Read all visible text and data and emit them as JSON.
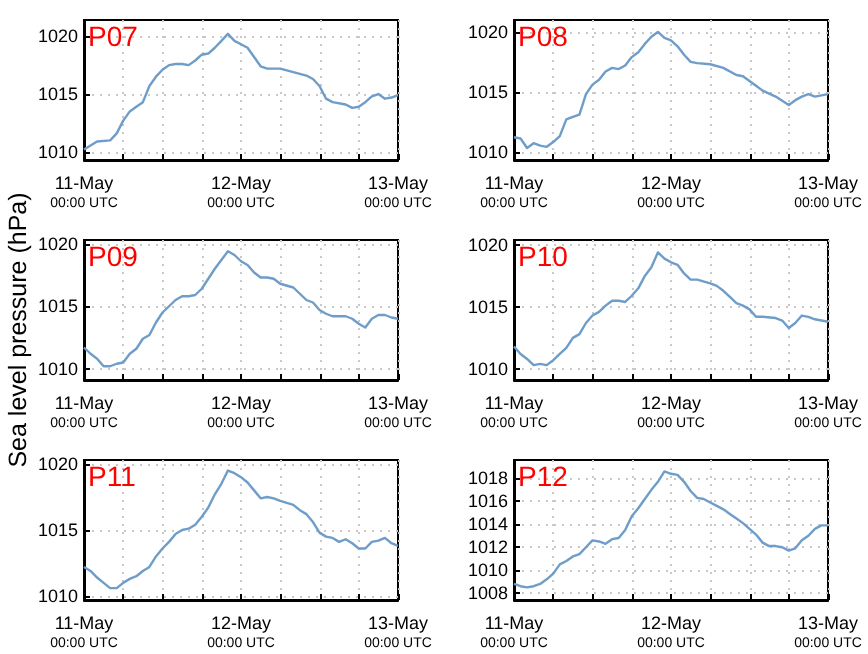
{
  "chart_data": [
    {
      "type": "line",
      "title": "P07",
      "x": [
        "--05-11T00:00",
        "--05-11T02:00",
        "--05-11T04:00",
        "--05-11T05:00",
        "--05-11T06:00",
        "--05-11T07:00",
        "--05-11T08:00",
        "--05-11T09:00",
        "--05-11T10:00",
        "--05-11T11:00",
        "--05-11T12:00",
        "--05-11T13:00",
        "--05-11T14:00",
        "--05-11T15:00",
        "--05-11T16:00",
        "--05-11T17:00",
        "--05-11T18:00",
        "--05-11T19:00",
        "--05-11T20:00",
        "--05-11T21:00",
        "--05-11T22:00",
        "--05-11T23:00",
        "--05-12T00:00",
        "--05-12T01:00",
        "--05-12T02:00",
        "--05-12T03:00",
        "--05-12T04:00",
        "--05-12T06:00",
        "--05-12T08:00",
        "--05-12T10:00",
        "--05-12T11:00",
        "--05-12T12:00",
        "--05-12T13:00",
        "--05-12T14:00",
        "--05-12T16:00",
        "--05-12T17:00",
        "--05-12T18:00",
        "--05-12T19:00",
        "--05-12T20:00",
        "--05-12T21:00",
        "--05-12T22:00",
        "--05-12T23:00",
        "--05-13T00:00"
      ],
      "series": [
        {
          "color": "#6f9dc9",
          "values": [
            1010.2,
            1010.9,
            1011.0,
            1011.6,
            1012.7,
            1013.5,
            1013.9,
            1014.3,
            1015.7,
            1016.5,
            1017.1,
            1017.5,
            1017.6,
            1017.6,
            1017.5,
            1017.9,
            1018.4,
            1018.5,
            1019.0,
            1019.6,
            1020.2,
            1019.6,
            1019.3,
            1019.0,
            1018.2,
            1017.4,
            1017.2,
            1017.2,
            1016.9,
            1016.6,
            1016.3,
            1015.7,
            1014.6,
            1014.3,
            1014.1,
            1013.8,
            1013.9,
            1014.3,
            1014.8,
            1015.0,
            1014.6,
            1014.7,
            1014.9
          ]
        }
      ],
      "xlim": [
        "--05-11T00:00",
        "--05-13T00:00"
      ],
      "xticks": [
        {
          "value": "--05-11T00:00",
          "label": "11-May\n00:00 UTC"
        },
        {
          "value": "--05-11T06:00",
          "label": null
        },
        {
          "value": "--05-11T12:00",
          "label": null
        },
        {
          "value": "--05-11T18:00",
          "label": null
        },
        {
          "value": "--05-12T00:00",
          "label": "12-May\n00:00 UTC"
        },
        {
          "value": "--05-12T06:00",
          "label": null
        },
        {
          "value": "--05-12T12:00",
          "label": null
        },
        {
          "value": "--05-12T18:00",
          "label": null
        },
        {
          "value": "--05-13T00:00",
          "label": "13-May\n00:00 UTC"
        }
      ],
      "ylim": [
        1009.3,
        1021.4
      ],
      "yticks": [
        1010,
        1015,
        1020
      ],
      "grid": true
    },
    {
      "type": "line",
      "title": "P08",
      "x": [
        "--05-11T00:00",
        "--05-11T01:00",
        "--05-11T02:00",
        "--05-11T03:00",
        "--05-11T04:00",
        "--05-11T05:00",
        "--05-11T06:00",
        "--05-11T07:00",
        "--05-11T08:00",
        "--05-11T09:00",
        "--05-11T10:00",
        "--05-11T11:00",
        "--05-11T12:00",
        "--05-11T13:00",
        "--05-11T14:00",
        "--05-11T15:00",
        "--05-11T16:00",
        "--05-11T17:00",
        "--05-11T18:00",
        "--05-11T19:00",
        "--05-11T20:00",
        "--05-11T21:00",
        "--05-11T22:00",
        "--05-11T23:00",
        "--05-12T00:00",
        "--05-12T01:00",
        "--05-12T02:00",
        "--05-12T03:00",
        "--05-12T04:00",
        "--05-12T06:00",
        "--05-12T08:00",
        "--05-12T10:00",
        "--05-12T11:00",
        "--05-12T12:00",
        "--05-12T13:00",
        "--05-12T14:00",
        "--05-12T16:00",
        "--05-12T18:00",
        "--05-12T19:00",
        "--05-12T20:00",
        "--05-12T21:00",
        "--05-12T22:00",
        "--05-12T23:00",
        "--05-13T00:00"
      ],
      "series": [
        {
          "color": "#6f9dc9",
          "values": [
            1011.2,
            1011.1,
            1010.3,
            1010.7,
            1010.5,
            1010.4,
            1010.8,
            1011.3,
            1012.7,
            1012.9,
            1013.1,
            1014.8,
            1015.6,
            1016.0,
            1016.7,
            1017.0,
            1016.9,
            1017.2,
            1017.9,
            1018.3,
            1019.0,
            1019.6,
            1020.0,
            1019.5,
            1019.3,
            1018.8,
            1018.1,
            1017.5,
            1017.4,
            1017.3,
            1017.0,
            1016.4,
            1016.3,
            1015.9,
            1015.5,
            1015.1,
            1014.6,
            1013.9,
            1014.3,
            1014.6,
            1014.8,
            1014.6,
            1014.7,
            1014.8
          ]
        }
      ],
      "xlim": [
        "--05-11T00:00",
        "--05-13T00:00"
      ],
      "xticks": [
        {
          "value": "--05-11T00:00",
          "label": "11-May\n00:00 UTC"
        },
        {
          "value": "--05-11T06:00",
          "label": null
        },
        {
          "value": "--05-11T12:00",
          "label": null
        },
        {
          "value": "--05-11T18:00",
          "label": null
        },
        {
          "value": "--05-12T00:00",
          "label": "12-May\n00:00 UTC"
        },
        {
          "value": "--05-12T06:00",
          "label": null
        },
        {
          "value": "--05-12T12:00",
          "label": null
        },
        {
          "value": "--05-12T18:00",
          "label": null
        },
        {
          "value": "--05-13T00:00",
          "label": "13-May\n00:00 UTC"
        }
      ],
      "ylim": [
        1009.3,
        1021.0
      ],
      "yticks": [
        1010,
        1015,
        1020
      ],
      "grid": true
    },
    {
      "type": "line",
      "title": "P09",
      "ylabel": "Sea level pressure (hPa)",
      "x": [
        "--05-11T00:00",
        "--05-11T01:00",
        "--05-11T02:00",
        "--05-11T03:00",
        "--05-11T04:00",
        "--05-11T05:00",
        "--05-11T06:00",
        "--05-11T07:00",
        "--05-11T08:00",
        "--05-11T09:00",
        "--05-11T10:00",
        "--05-11T11:00",
        "--05-11T12:00",
        "--05-11T13:00",
        "--05-11T14:00",
        "--05-11T15:00",
        "--05-11T16:00",
        "--05-11T17:00",
        "--05-11T18:00",
        "--05-11T19:00",
        "--05-11T20:00",
        "--05-11T21:00",
        "--05-11T22:00",
        "--05-11T23:00",
        "--05-12T00:00",
        "--05-12T01:00",
        "--05-12T02:00",
        "--05-12T03:00",
        "--05-12T04:00",
        "--05-12T05:00",
        "--05-12T06:00",
        "--05-12T08:00",
        "--05-12T09:00",
        "--05-12T10:00",
        "--05-12T11:00",
        "--05-12T12:00",
        "--05-12T13:00",
        "--05-12T14:00",
        "--05-12T16:00",
        "--05-12T17:00",
        "--05-12T18:00",
        "--05-12T19:00",
        "--05-12T20:00",
        "--05-12T21:00",
        "--05-12T22:00",
        "--05-12T23:00",
        "--05-13T00:00"
      ],
      "series": [
        {
          "color": "#6f9dc9",
          "values": [
            1011.7,
            1011.2,
            1010.8,
            1010.2,
            1010.2,
            1010.4,
            1010.5,
            1011.2,
            1011.6,
            1012.4,
            1012.7,
            1013.7,
            1014.5,
            1015.0,
            1015.5,
            1015.8,
            1015.8,
            1015.9,
            1016.4,
            1017.2,
            1018.0,
            1018.7,
            1019.4,
            1019.1,
            1018.6,
            1018.3,
            1017.7,
            1017.3,
            1017.3,
            1017.2,
            1016.8,
            1016.5,
            1016.0,
            1015.5,
            1015.3,
            1014.7,
            1014.4,
            1014.2,
            1014.2,
            1014.0,
            1013.6,
            1013.3,
            1014.0,
            1014.3,
            1014.3,
            1014.1,
            1014.0
          ]
        }
      ],
      "xlim": [
        "--05-11T00:00",
        "--05-13T00:00"
      ],
      "xticks": [
        {
          "value": "--05-11T00:00",
          "label": "11-May\n00:00 UTC"
        },
        {
          "value": "--05-11T06:00",
          "label": null
        },
        {
          "value": "--05-11T12:00",
          "label": null
        },
        {
          "value": "--05-11T18:00",
          "label": null
        },
        {
          "value": "--05-12T00:00",
          "label": "12-May\n00:00 UTC"
        },
        {
          "value": "--05-12T06:00",
          "label": null
        },
        {
          "value": "--05-12T12:00",
          "label": null
        },
        {
          "value": "--05-12T18:00",
          "label": null
        },
        {
          "value": "--05-13T00:00",
          "label": "13-May\n00:00 UTC"
        }
      ],
      "ylim": [
        1009.1,
        1020.3
      ],
      "yticks": [
        1010,
        1015,
        1020
      ],
      "grid": true
    },
    {
      "type": "line",
      "title": "P10",
      "x": [
        "--05-11T00:00",
        "--05-11T01:00",
        "--05-11T02:00",
        "--05-11T03:00",
        "--05-11T04:00",
        "--05-11T05:00",
        "--05-11T06:00",
        "--05-11T07:00",
        "--05-11T08:00",
        "--05-11T09:00",
        "--05-11T10:00",
        "--05-11T11:00",
        "--05-11T12:00",
        "--05-11T13:00",
        "--05-11T14:00",
        "--05-11T15:00",
        "--05-11T16:00",
        "--05-11T17:00",
        "--05-11T18:00",
        "--05-11T19:00",
        "--05-11T20:00",
        "--05-11T21:00",
        "--05-11T22:00",
        "--05-11T23:00",
        "--05-12T00:00",
        "--05-12T01:00",
        "--05-12T02:00",
        "--05-12T03:00",
        "--05-12T04:00",
        "--05-12T06:00",
        "--05-12T07:00",
        "--05-12T08:00",
        "--05-12T09:00",
        "--05-12T10:00",
        "--05-12T11:00",
        "--05-12T12:00",
        "--05-12T13:00",
        "--05-12T14:00",
        "--05-12T16:00",
        "--05-12T17:00",
        "--05-12T18:00",
        "--05-12T19:00",
        "--05-12T20:00",
        "--05-12T21:00",
        "--05-12T22:00",
        "--05-12T23:00",
        "--05-13T00:00"
      ],
      "series": [
        {
          "color": "#6f9dc9",
          "values": [
            1011.8,
            1011.2,
            1010.8,
            1010.3,
            1010.4,
            1010.3,
            1010.7,
            1011.2,
            1011.7,
            1012.5,
            1012.8,
            1013.7,
            1014.3,
            1014.6,
            1015.1,
            1015.5,
            1015.5,
            1015.4,
            1015.9,
            1016.5,
            1017.5,
            1018.2,
            1019.4,
            1018.9,
            1018.6,
            1018.4,
            1017.7,
            1017.2,
            1017.2,
            1016.9,
            1016.7,
            1016.3,
            1015.8,
            1015.3,
            1015.1,
            1014.8,
            1014.2,
            1014.2,
            1014.1,
            1013.9,
            1013.3,
            1013.7,
            1014.3,
            1014.2,
            1014.0,
            1013.9,
            1013.8
          ]
        }
      ],
      "xlim": [
        "--05-11T00:00",
        "--05-13T00:00"
      ],
      "xticks": [
        {
          "value": "--05-11T00:00",
          "label": "11-May\n00:00 UTC"
        },
        {
          "value": "--05-11T06:00",
          "label": null
        },
        {
          "value": "--05-11T12:00",
          "label": null
        },
        {
          "value": "--05-11T18:00",
          "label": null
        },
        {
          "value": "--05-12T00:00",
          "label": "12-May\n00:00 UTC"
        },
        {
          "value": "--05-12T06:00",
          "label": null
        },
        {
          "value": "--05-12T12:00",
          "label": null
        },
        {
          "value": "--05-12T18:00",
          "label": null
        },
        {
          "value": "--05-13T00:00",
          "label": "13-May\n00:00 UTC"
        }
      ],
      "ylim": [
        1009.1,
        1020.4
      ],
      "yticks": [
        1010,
        1015,
        1020
      ],
      "grid": true
    },
    {
      "type": "line",
      "title": "P11",
      "x": [
        "--05-11T00:00",
        "--05-11T01:00",
        "--05-11T02:00",
        "--05-11T03:00",
        "--05-11T04:00",
        "--05-11T05:00",
        "--05-11T06:00",
        "--05-11T07:00",
        "--05-11T08:00",
        "--05-11T09:00",
        "--05-11T10:00",
        "--05-11T11:00",
        "--05-11T12:00",
        "--05-11T13:00",
        "--05-11T14:00",
        "--05-11T15:00",
        "--05-11T16:00",
        "--05-11T17:00",
        "--05-11T18:00",
        "--05-11T19:00",
        "--05-11T20:00",
        "--05-11T21:00",
        "--05-11T22:00",
        "--05-11T23:00",
        "--05-12T00:00",
        "--05-12T01:00",
        "--05-12T02:00",
        "--05-12T03:00",
        "--05-12T04:00",
        "--05-12T05:00",
        "--05-12T06:00",
        "--05-12T08:00",
        "--05-12T09:00",
        "--05-12T10:00",
        "--05-12T11:00",
        "--05-12T12:00",
        "--05-12T13:00",
        "--05-12T14:00",
        "--05-12T15:00",
        "--05-12T16:00",
        "--05-12T17:00",
        "--05-12T18:00",
        "--05-12T19:00",
        "--05-12T20:00",
        "--05-12T21:00",
        "--05-12T22:00",
        "--05-12T23:00",
        "--05-13T00:00"
      ],
      "series": [
        {
          "color": "#6f9dc9",
          "values": [
            1012.2,
            1011.9,
            1011.4,
            1011.0,
            1010.6,
            1010.6,
            1011.0,
            1011.3,
            1011.5,
            1011.9,
            1012.2,
            1013.0,
            1013.6,
            1014.1,
            1014.7,
            1015.0,
            1015.1,
            1015.4,
            1016.0,
            1016.7,
            1017.7,
            1018.5,
            1019.5,
            1019.3,
            1019.0,
            1018.6,
            1018.0,
            1017.4,
            1017.5,
            1017.4,
            1017.2,
            1016.9,
            1016.5,
            1016.2,
            1015.6,
            1014.8,
            1014.5,
            1014.4,
            1014.1,
            1014.3,
            1014.0,
            1013.6,
            1013.6,
            1014.1,
            1014.2,
            1014.4,
            1014.0,
            1013.8
          ]
        }
      ],
      "xlim": [
        "--05-11T00:00",
        "--05-13T00:00"
      ],
      "xticks": [
        {
          "value": "--05-11T00:00",
          "label": "11-May\n00:00 UTC"
        },
        {
          "value": "--05-11T06:00",
          "label": null
        },
        {
          "value": "--05-11T12:00",
          "label": null
        },
        {
          "value": "--05-11T18:00",
          "label": null
        },
        {
          "value": "--05-12T00:00",
          "label": "12-May\n00:00 UTC"
        },
        {
          "value": "--05-12T06:00",
          "label": null
        },
        {
          "value": "--05-12T12:00",
          "label": null
        },
        {
          "value": "--05-12T18:00",
          "label": null
        },
        {
          "value": "--05-13T00:00",
          "label": "13-May\n00:00 UTC"
        }
      ],
      "ylim": [
        1009.7,
        1020.3
      ],
      "yticks": [
        1010,
        1015,
        1020
      ],
      "grid": true
    },
    {
      "type": "line",
      "title": "P12",
      "x": [
        "--05-11T00:00",
        "--05-11T01:00",
        "--05-11T02:00",
        "--05-11T03:00",
        "--05-11T04:00",
        "--05-11T05:00",
        "--05-11T06:00",
        "--05-11T07:00",
        "--05-11T08:00",
        "--05-11T09:00",
        "--05-11T10:00",
        "--05-11T11:00",
        "--05-11T12:00",
        "--05-11T13:00",
        "--05-11T14:00",
        "--05-11T15:00",
        "--05-11T16:00",
        "--05-11T17:00",
        "--05-11T18:00",
        "--05-11T19:00",
        "--05-11T20:00",
        "--05-11T21:00",
        "--05-11T22:00",
        "--05-11T23:00",
        "--05-12T00:00",
        "--05-12T01:00",
        "--05-12T02:00",
        "--05-12T03:00",
        "--05-12T04:00",
        "--05-12T05:00",
        "--05-12T06:00",
        "--05-12T07:00",
        "--05-12T08:00",
        "--05-12T09:00",
        "--05-12T10:00",
        "--05-12T11:00",
        "--05-12T12:00",
        "--05-12T13:00",
        "--05-12T14:00",
        "--05-12T15:00",
        "--05-12T16:00",
        "--05-12T17:00",
        "--05-12T18:00",
        "--05-12T19:00",
        "--05-12T20:00",
        "--05-12T21:00",
        "--05-12T22:00",
        "--05-12T23:00",
        "--05-13T00:00"
      ],
      "series": [
        {
          "color": "#6f9dc9",
          "values": [
            1008.8,
            1008.6,
            1008.5,
            1008.6,
            1008.8,
            1009.2,
            1009.7,
            1010.5,
            1010.8,
            1011.2,
            1011.4,
            1012.0,
            1012.6,
            1012.5,
            1012.3,
            1012.7,
            1012.8,
            1013.5,
            1014.7,
            1015.4,
            1016.2,
            1017.0,
            1017.7,
            1018.6,
            1018.4,
            1018.3,
            1017.7,
            1016.9,
            1016.3,
            1016.2,
            1015.9,
            1015.6,
            1015.3,
            1014.9,
            1014.5,
            1014.1,
            1013.6,
            1013.1,
            1012.4,
            1012.1,
            1012.1,
            1012.0,
            1011.7,
            1011.9,
            1012.6,
            1013.0,
            1013.6,
            1013.9,
            1013.9
          ]
        }
      ],
      "xlim": [
        "--05-11T00:00",
        "--05-13T00:00"
      ],
      "xticks": [
        {
          "value": "--05-11T00:00",
          "label": "11-May\n00:00 UTC"
        },
        {
          "value": "--05-11T06:00",
          "label": null
        },
        {
          "value": "--05-11T12:00",
          "label": null
        },
        {
          "value": "--05-11T18:00",
          "label": null
        },
        {
          "value": "--05-12T00:00",
          "label": "12-May\n00:00 UTC"
        },
        {
          "value": "--05-12T06:00",
          "label": null
        },
        {
          "value": "--05-12T12:00",
          "label": null
        },
        {
          "value": "--05-12T18:00",
          "label": null
        },
        {
          "value": "--05-13T00:00",
          "label": "13-May\n00:00 UTC"
        }
      ],
      "ylim": [
        1007.4,
        1019.6
      ],
      "yticks": [
        1008,
        1010,
        1012,
        1014,
        1016,
        1018
      ],
      "grid": true
    }
  ]
}
